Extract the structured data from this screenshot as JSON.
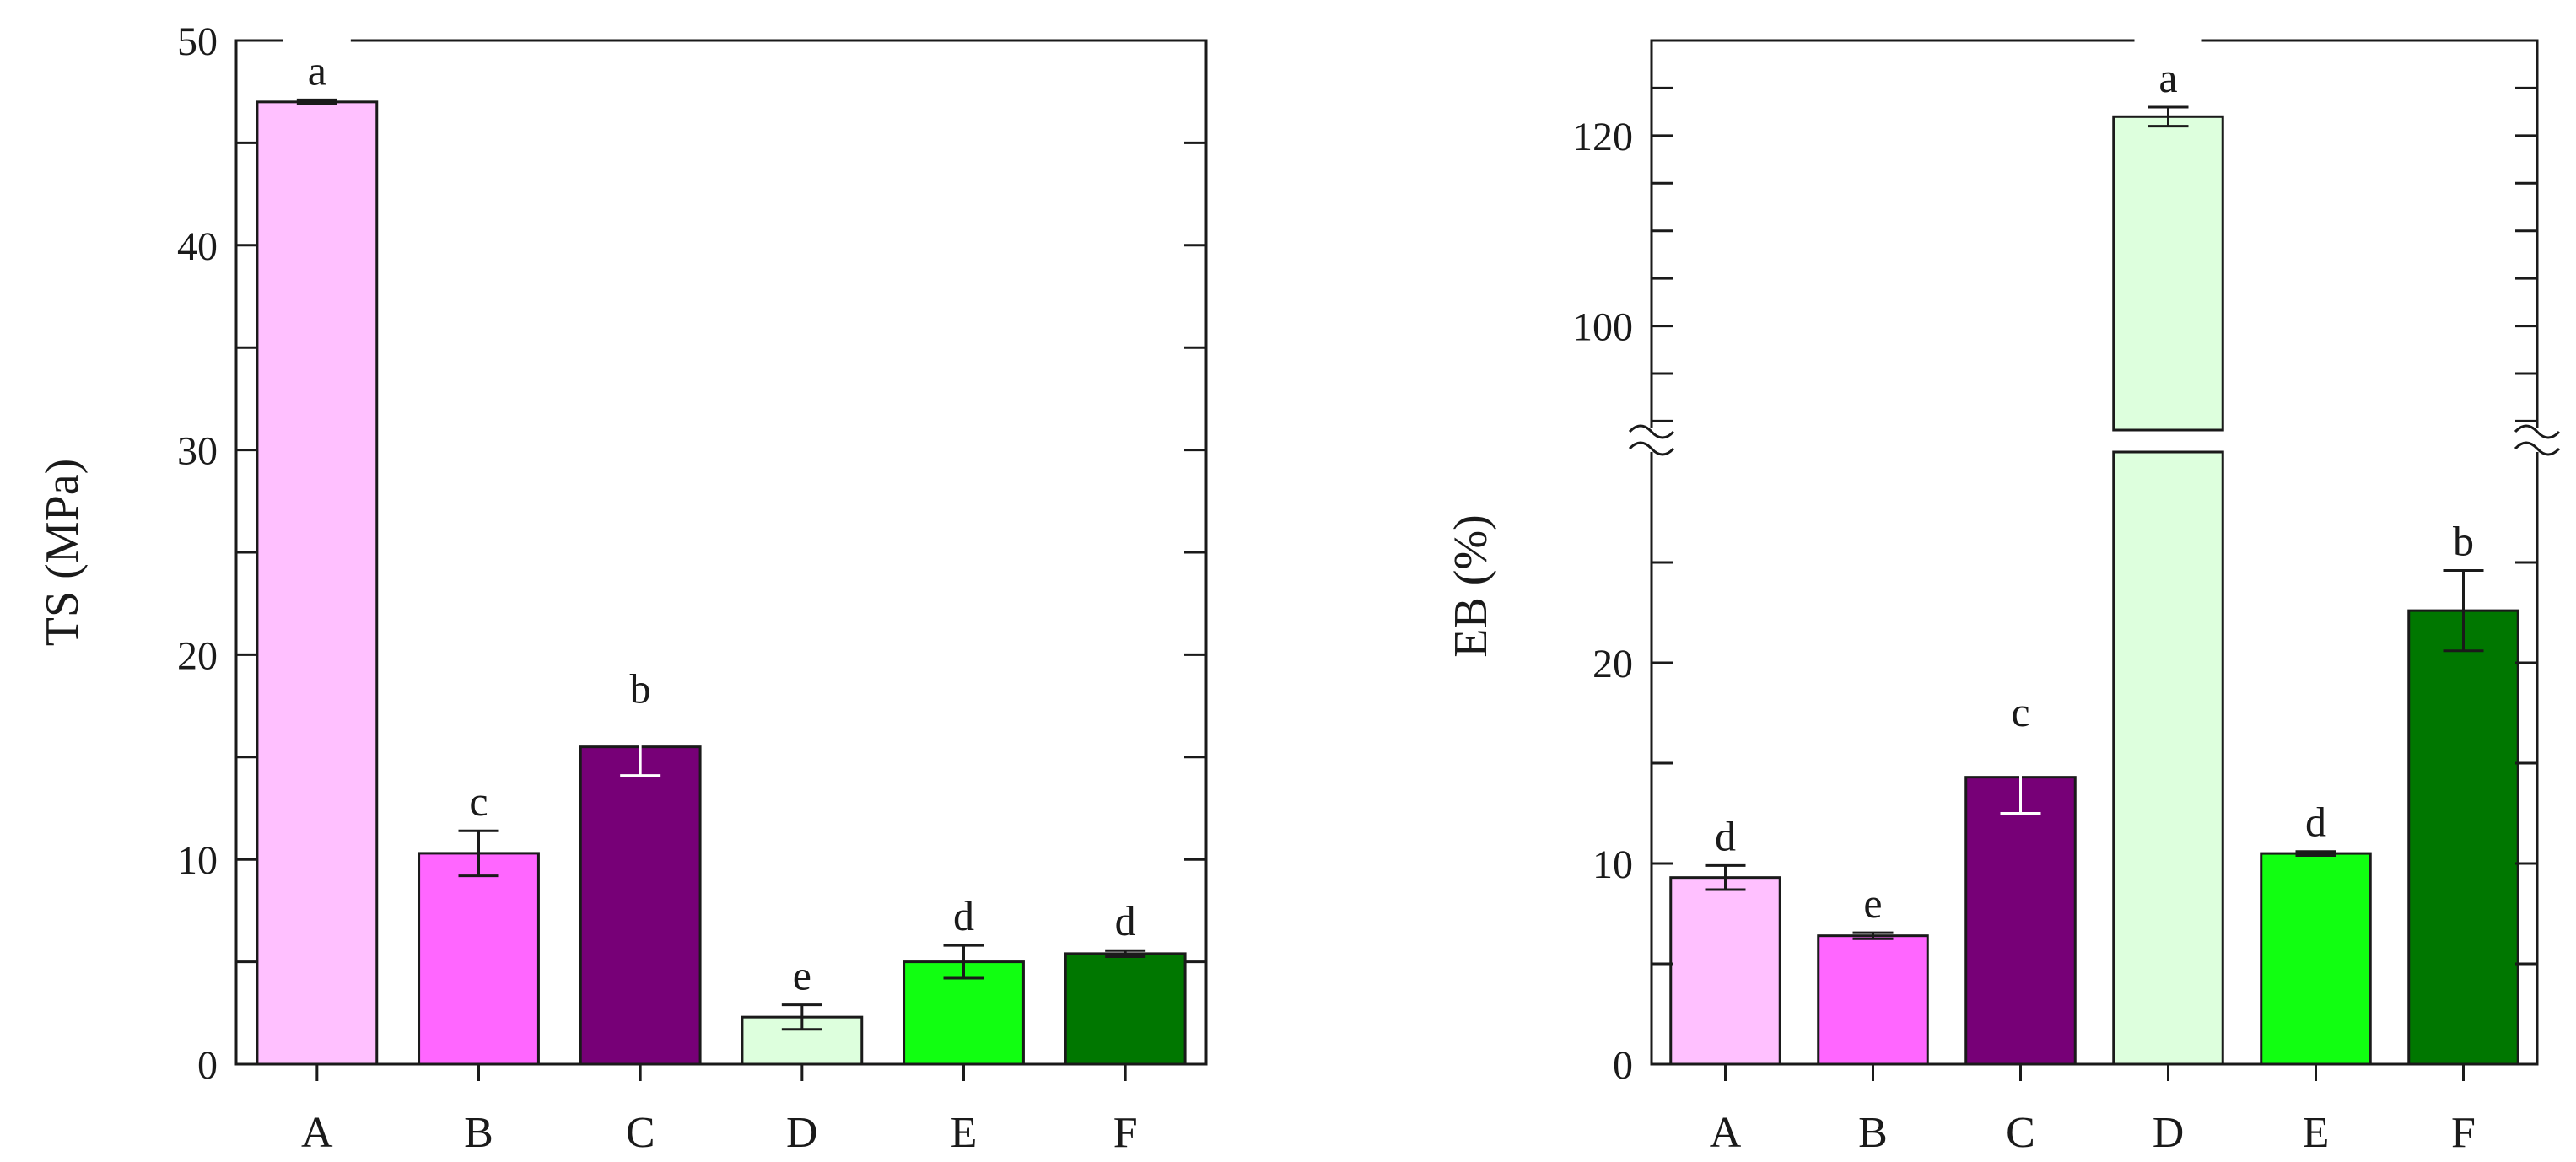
{
  "chart_data": [
    {
      "type": "bar",
      "title": "",
      "xlabel": "",
      "ylabel": "TS (MPa)",
      "ylim": [
        0,
        50
      ],
      "yticks": [
        0,
        10,
        20,
        30,
        40,
        50
      ],
      "grid": false,
      "legend": "none",
      "categories": [
        "A",
        "B",
        "C",
        "D",
        "E",
        "F"
      ],
      "values": [
        47.0,
        10.3,
        15.5,
        2.3,
        5.0,
        5.4
      ],
      "errors": [
        0.1,
        1.1,
        1.4,
        0.6,
        0.8,
        0.15
      ],
      "significance": [
        "a",
        "c",
        "b",
        "e",
        "d",
        "d"
      ],
      "colors": [
        "#FFC0FF",
        "#FF66FF",
        "#770077",
        "#DDFFDD",
        "#11FF11",
        "#007700"
      ]
    },
    {
      "type": "bar",
      "title": "",
      "xlabel": "",
      "ylabel": "EB (%)",
      "axis_break": true,
      "ylim_lower": [
        0,
        30
      ],
      "ylim_upper": [
        88,
        130
      ],
      "yticks": [
        0,
        10,
        20,
        100,
        120
      ],
      "grid": false,
      "legend": "none",
      "categories": [
        "A",
        "B",
        "C",
        "D",
        "E",
        "F"
      ],
      "values": [
        9.3,
        6.4,
        14.3,
        122.0,
        10.5,
        22.6
      ],
      "errors": [
        0.6,
        0.15,
        1.8,
        1.0,
        0.1,
        2.0
      ],
      "significance": [
        "d",
        "e",
        "c",
        "a",
        "d",
        "b"
      ],
      "colors": [
        "#FFC0FF",
        "#FF66FF",
        "#770077",
        "#DDFFDD",
        "#11FF11",
        "#007700"
      ]
    }
  ]
}
